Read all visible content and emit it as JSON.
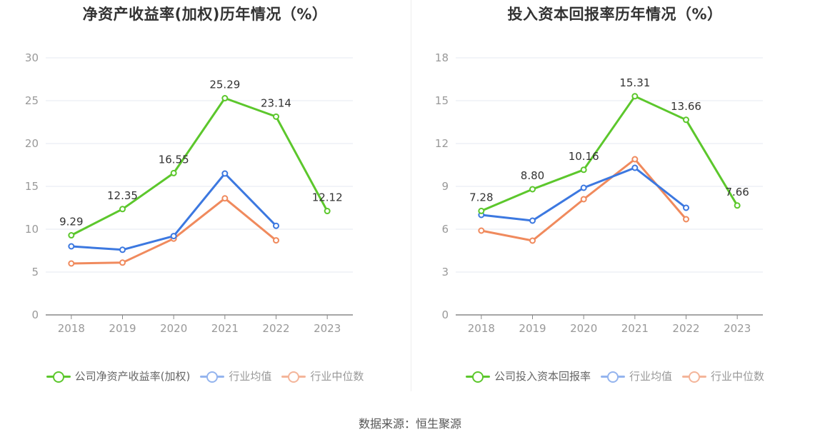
{
  "source": "数据来源：恒生聚源",
  "colors": {
    "company": "#5cc72c",
    "avg": "#3c78e0",
    "median": "#f08a5d",
    "avg_legend": "#94b4ee",
    "median_legend": "#f4b59a",
    "grid": "#e6e9f2",
    "axis": "#888888",
    "tick": "#999999",
    "label": "#333333"
  },
  "chart_data": [
    {
      "type": "line",
      "title": "净资产收益率(加权)历年情况（%）",
      "categories": [
        "2018",
        "2019",
        "2020",
        "2021",
        "2022",
        "2023"
      ],
      "ylim": [
        0,
        30
      ],
      "yticks": [
        0,
        5,
        10,
        15,
        20,
        25,
        30
      ],
      "grid": true,
      "legend_position": "bottom",
      "series": [
        {
          "name": "公司净资产收益率(加权)",
          "key": "company",
          "values": [
            9.29,
            12.35,
            16.55,
            25.29,
            23.14,
            12.12
          ],
          "labels": [
            "9.29",
            "12.35",
            "16.55",
            "25.29",
            "23.14",
            "12.12"
          ]
        },
        {
          "name": "行业均值",
          "key": "avg",
          "values": [
            8.0,
            7.6,
            9.2,
            16.5,
            10.4,
            null
          ]
        },
        {
          "name": "行业中位数",
          "key": "median",
          "values": [
            6.0,
            6.1,
            8.9,
            13.6,
            8.7,
            null
          ]
        }
      ]
    },
    {
      "type": "line",
      "title": "投入资本回报率历年情况（%）",
      "categories": [
        "2018",
        "2019",
        "2020",
        "2021",
        "2022",
        "2023"
      ],
      "ylim": [
        0,
        18
      ],
      "yticks": [
        0,
        3,
        6,
        9,
        12,
        15,
        18
      ],
      "grid": true,
      "legend_position": "bottom",
      "series": [
        {
          "name": "公司投入资本回报率",
          "key": "company",
          "values": [
            7.28,
            8.8,
            10.16,
            15.31,
            13.66,
            7.66
          ],
          "labels": [
            "7.28",
            "8.80",
            "10.16",
            "15.31",
            "13.66",
            "7.66"
          ]
        },
        {
          "name": "行业均值",
          "key": "avg",
          "values": [
            7.0,
            6.6,
            8.9,
            10.3,
            7.5,
            null
          ]
        },
        {
          "name": "行业中位数",
          "key": "median",
          "values": [
            5.9,
            5.2,
            8.1,
            10.9,
            6.7,
            null
          ]
        }
      ]
    }
  ]
}
